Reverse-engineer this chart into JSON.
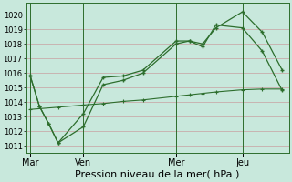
{
  "background_color": "#c8e8dc",
  "grid_color": "#c8a0a0",
  "line_color": "#2d6e2d",
  "ylim": [
    1010.5,
    1020.8
  ],
  "yticks": [
    1011,
    1012,
    1013,
    1014,
    1015,
    1016,
    1017,
    1018,
    1019,
    1020
  ],
  "xlabel": "Pression niveau de la mer( hPa )",
  "xlabel_fontsize": 8,
  "xtick_labels": [
    "Mar",
    "Ven",
    "Mer",
    "Jeu"
  ],
  "xtick_positions": [
    0,
    4,
    11,
    16
  ],
  "xlim": [
    -0.3,
    19.5
  ],
  "vline_positions": [
    0,
    4,
    11,
    16
  ],
  "series1_x": [
    0,
    0.7,
    1.4,
    2.1,
    4,
    5.5,
    7,
    8.5,
    11,
    12,
    13,
    14,
    16,
    17.5,
    19
  ],
  "series1_y": [
    1015.8,
    1013.7,
    1012.5,
    1011.2,
    1013.2,
    1015.7,
    1015.8,
    1016.2,
    1018.2,
    1018.2,
    1018.0,
    1019.1,
    1020.2,
    1018.8,
    1016.2
  ],
  "series2_x": [
    0,
    0.7,
    1.4,
    2.1,
    4,
    5.5,
    7,
    8.5,
    11,
    12,
    13,
    14,
    16,
    17.5,
    19
  ],
  "series2_y": [
    1015.8,
    1013.7,
    1012.5,
    1011.2,
    1012.3,
    1015.2,
    1015.5,
    1016.0,
    1018.0,
    1018.2,
    1017.8,
    1019.3,
    1019.1,
    1017.5,
    1014.8
  ],
  "series3_x": [
    0,
    2.1,
    4,
    5.5,
    7,
    8.5,
    11,
    12,
    13,
    14,
    16,
    17.5,
    19
  ],
  "series3_y": [
    1013.5,
    1013.65,
    1013.8,
    1013.9,
    1014.05,
    1014.15,
    1014.4,
    1014.5,
    1014.6,
    1014.7,
    1014.85,
    1014.9,
    1014.9
  ],
  "marker": "+",
  "ytick_fontsize": 6,
  "xtick_fontsize": 7
}
